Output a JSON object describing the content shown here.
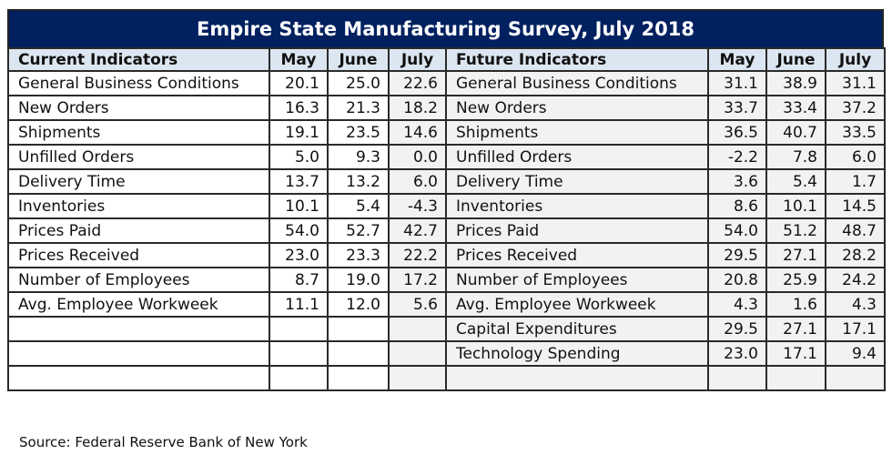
{
  "title": "Empire State Manufacturing Survey, July 2018",
  "source": "Source: Federal Reserve Bank of New York",
  "colors": {
    "title_bg": "#002060",
    "header_bg": "#dce6f1",
    "shaded_cell": "#f2f2f2"
  },
  "chart_data": {
    "type": "table",
    "title": "Empire State Manufacturing Survey, July 2018",
    "current": {
      "header": "Current Indicators",
      "columns": [
        "May",
        "June",
        "July"
      ],
      "rows": [
        {
          "label": "General Business Conditions",
          "values": [
            "20.1",
            "25.0",
            "22.6"
          ]
        },
        {
          "label": "New Orders",
          "values": [
            "16.3",
            "21.3",
            "18.2"
          ]
        },
        {
          "label": "Shipments",
          "values": [
            "19.1",
            "23.5",
            "14.6"
          ]
        },
        {
          "label": "Unfilled Orders",
          "values": [
            "5.0",
            "9.3",
            "0.0"
          ]
        },
        {
          "label": "Delivery Time",
          "values": [
            "13.7",
            "13.2",
            "6.0"
          ]
        },
        {
          "label": "Inventories",
          "values": [
            "10.1",
            "5.4",
            "-4.3"
          ]
        },
        {
          "label": "Prices Paid",
          "values": [
            "54.0",
            "52.7",
            "42.7"
          ]
        },
        {
          "label": "Prices Received",
          "values": [
            "23.0",
            "23.3",
            "22.2"
          ]
        },
        {
          "label": "Number of Employees",
          "values": [
            "8.7",
            "19.0",
            "17.2"
          ]
        },
        {
          "label": "Avg. Employee Workweek",
          "values": [
            "11.1",
            "12.0",
            "5.6"
          ]
        }
      ]
    },
    "future": {
      "header": "Future Indicators",
      "columns": [
        "May",
        "June",
        "July"
      ],
      "rows": [
        {
          "label": "General Business Conditions",
          "values": [
            "31.1",
            "38.9",
            "31.1"
          ]
        },
        {
          "label": "New Orders",
          "values": [
            "33.7",
            "33.4",
            "37.2"
          ]
        },
        {
          "label": "Shipments",
          "values": [
            "36.5",
            "40.7",
            "33.5"
          ]
        },
        {
          "label": "Unfilled Orders",
          "values": [
            "-2.2",
            "7.8",
            "6.0"
          ]
        },
        {
          "label": "Delivery Time",
          "values": [
            "3.6",
            "5.4",
            "1.7"
          ]
        },
        {
          "label": "Inventories",
          "values": [
            "8.6",
            "10.1",
            "14.5"
          ]
        },
        {
          "label": "Prices Paid",
          "values": [
            "54.0",
            "51.2",
            "48.7"
          ]
        },
        {
          "label": "Prices Received",
          "values": [
            "29.5",
            "27.1",
            "28.2"
          ]
        },
        {
          "label": "Number of Employees",
          "values": [
            "20.8",
            "25.9",
            "24.2"
          ]
        },
        {
          "label": "Avg. Employee Workweek",
          "values": [
            "4.3",
            "1.6",
            "4.3"
          ]
        },
        {
          "label": "Capital Expenditures",
          "values": [
            "29.5",
            "27.1",
            "17.1"
          ]
        },
        {
          "label": "Technology Spending",
          "values": [
            "23.0",
            "17.1",
            "9.4"
          ]
        }
      ]
    }
  }
}
